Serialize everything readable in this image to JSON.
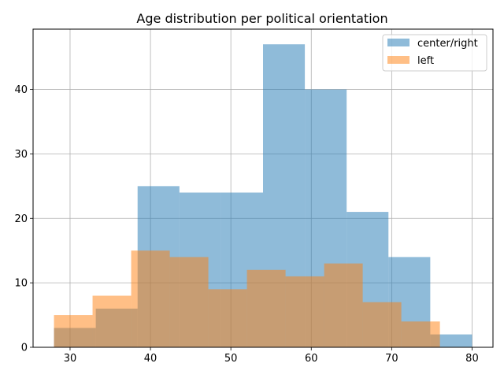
{
  "chart_data": {
    "type": "bar",
    "title": "Age distribution per political orientation",
    "xlabel": "",
    "ylabel": "",
    "xlim": [
      25.4,
      82.6
    ],
    "ylim": [
      0,
      49.35
    ],
    "xticks": [
      30,
      40,
      50,
      60,
      70,
      80
    ],
    "yticks": [
      0,
      10,
      20,
      30,
      40
    ],
    "grid": true,
    "legend_position": "top-right",
    "series": [
      {
        "name": "center/right",
        "color": "#1f77b4",
        "alpha": 0.5,
        "bins": [
          {
            "x0": 28.0,
            "x1": 33.2,
            "count": 3
          },
          {
            "x0": 33.2,
            "x1": 38.4,
            "count": 6
          },
          {
            "x0": 38.4,
            "x1": 43.6,
            "count": 25
          },
          {
            "x0": 43.6,
            "x1": 48.8,
            "count": 24
          },
          {
            "x0": 48.8,
            "x1": 54.0,
            "count": 24
          },
          {
            "x0": 54.0,
            "x1": 59.2,
            "count": 47
          },
          {
            "x0": 59.2,
            "x1": 64.4,
            "count": 40
          },
          {
            "x0": 64.4,
            "x1": 69.6,
            "count": 21
          },
          {
            "x0": 69.6,
            "x1": 74.8,
            "count": 14
          },
          {
            "x0": 74.8,
            "x1": 80.0,
            "count": 2
          }
        ]
      },
      {
        "name": "left",
        "color": "#ff7f0e",
        "alpha": 0.5,
        "bins": [
          {
            "x0": 28.0,
            "x1": 32.8,
            "count": 5
          },
          {
            "x0": 32.8,
            "x1": 37.6,
            "count": 8
          },
          {
            "x0": 37.6,
            "x1": 42.4,
            "count": 15
          },
          {
            "x0": 42.4,
            "x1": 47.2,
            "count": 14
          },
          {
            "x0": 47.2,
            "x1": 52.0,
            "count": 9
          },
          {
            "x0": 52.0,
            "x1": 56.8,
            "count": 12
          },
          {
            "x0": 56.8,
            "x1": 61.6,
            "count": 11
          },
          {
            "x0": 61.6,
            "x1": 66.4,
            "count": 13
          },
          {
            "x0": 66.4,
            "x1": 71.2,
            "count": 7
          },
          {
            "x0": 71.2,
            "x1": 76.0,
            "count": 4
          }
        ]
      }
    ]
  }
}
